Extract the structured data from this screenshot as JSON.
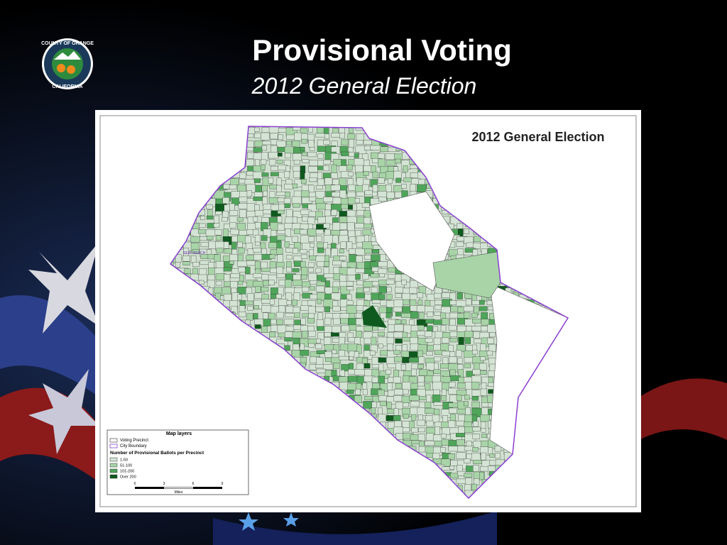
{
  "header": {
    "title": "Provisional Voting",
    "subtitle": "2012 General Election"
  },
  "logo": {
    "top": "COUNTY OF ORANGE",
    "bottom": "CALIFORNIA"
  },
  "map": {
    "title": "2012 General Election",
    "place_labels": [
      "SEAL BEACH"
    ],
    "legend": {
      "heading": "Map layers",
      "layers": [
        "Voting Precinct",
        "City Boundary"
      ],
      "classes_heading": "Number of Provisional Ballots per Precinct",
      "classes": [
        "1-50",
        "51-100",
        "101-200",
        "Over 200"
      ],
      "scale_ticks": [
        "0",
        "3",
        "6",
        "9"
      ],
      "scale_unit": "Miles"
    }
  }
}
